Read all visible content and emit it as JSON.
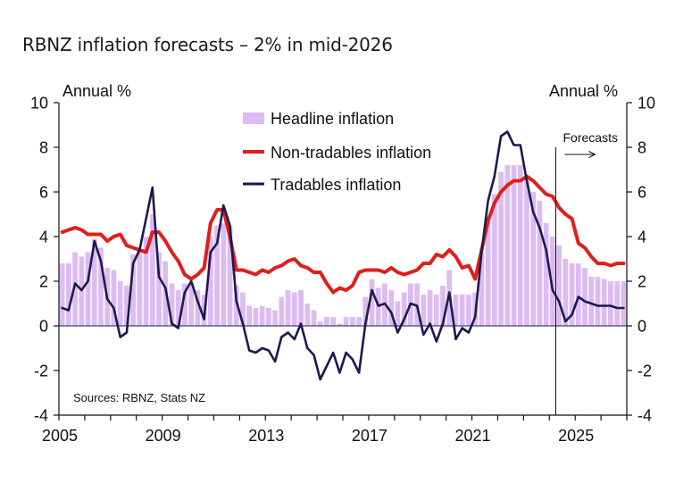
{
  "title": "RBNZ inflation forecasts – 2% in mid-2026",
  "chart_data": {
    "type": "bar+line",
    "title": "RBNZ inflation forecasts – 2% in mid-2026",
    "frequency": "quarterly",
    "x_start": "2005 Q1",
    "x_end": "2026 Q4",
    "x_range": [
      2005,
      2027
    ],
    "x_ticks": [
      2005,
      2009,
      2013,
      2017,
      2021,
      2025
    ],
    "x_tick_labels": [
      "2005",
      "2009",
      "2013",
      "2017",
      "2021",
      "2025"
    ],
    "ylim": [
      -4,
      10
    ],
    "y_ticks": [
      -4,
      -2,
      0,
      2,
      4,
      6,
      8,
      10
    ],
    "y_tick_labels": [
      "-4",
      "-2",
      "0",
      "2",
      "4",
      "6",
      "8",
      "10"
    ],
    "ylabel_left": "Annual %",
    "ylabel_right": "Annual %",
    "grid": false,
    "legend_position": "top-center",
    "forecast_start": 2024.25,
    "forecast_label": "Forecasts",
    "source_note": "Sources: RBNZ, Stats NZ",
    "series": [
      {
        "name": "Headline inflation",
        "kind": "bar",
        "color": "#DDBCF2",
        "values": [
          2.8,
          2.8,
          3.3,
          3.1,
          3.3,
          3.9,
          3.5,
          2.6,
          2.5,
          2.0,
          1.8,
          3.2,
          3.4,
          4.0,
          5.0,
          3.3,
          2.9,
          1.9,
          1.6,
          1.9,
          1.9,
          1.6,
          1.4,
          4.0,
          4.5,
          4.6,
          4.5,
          1.8,
          1.5,
          0.9,
          0.8,
          0.9,
          0.8,
          0.7,
          1.3,
          1.6,
          1.5,
          1.6,
          1.0,
          0.7,
          0.2,
          0.4,
          0.4,
          0.1,
          0.4,
          0.4,
          0.4,
          1.3,
          2.1,
          1.7,
          1.9,
          1.6,
          1.1,
          1.5,
          1.9,
          1.9,
          1.4,
          1.6,
          1.4,
          1.8,
          2.5,
          1.4,
          1.4,
          1.4,
          1.5,
          3.3,
          4.9,
          5.9,
          6.9,
          7.2,
          7.2,
          7.2,
          6.7,
          6.0,
          5.6,
          4.6,
          4.0,
          3.6,
          3.0,
          2.8,
          2.8,
          2.6,
          2.2,
          2.2,
          2.1,
          2.0,
          2.0,
          2.0
        ]
      },
      {
        "name": "Non-tradables inflation",
        "kind": "line",
        "color": "#E01E1A",
        "values": [
          4.2,
          4.3,
          4.4,
          4.3,
          4.1,
          4.1,
          4.1,
          3.8,
          4.0,
          4.1,
          3.6,
          3.5,
          3.4,
          3.3,
          4.2,
          4.2,
          3.8,
          3.3,
          2.9,
          2.3,
          2.1,
          2.3,
          2.6,
          4.6,
          5.2,
          5.2,
          4.0,
          2.5,
          2.5,
          2.4,
          2.3,
          2.5,
          2.4,
          2.6,
          2.7,
          2.9,
          3.0,
          2.7,
          2.6,
          2.4,
          2.4,
          1.9,
          1.5,
          1.7,
          1.6,
          1.8,
          2.4,
          2.5,
          2.5,
          2.5,
          2.4,
          2.6,
          2.4,
          2.3,
          2.4,
          2.5,
          2.8,
          2.8,
          3.2,
          3.1,
          3.4,
          3.1,
          2.6,
          2.7,
          2.1,
          3.4,
          4.7,
          5.5,
          6.0,
          6.3,
          6.5,
          6.5,
          6.7,
          6.5,
          6.2,
          5.9,
          5.8,
          5.3,
          5.0,
          4.8,
          3.7,
          3.5,
          3.1,
          2.8,
          2.8,
          2.7,
          2.8,
          2.8
        ]
      },
      {
        "name": "Tradables inflation",
        "kind": "line",
        "color": "#1C1A4E",
        "values": [
          0.8,
          0.7,
          1.9,
          1.6,
          2.0,
          3.8,
          2.9,
          1.2,
          0.8,
          -0.5,
          -0.3,
          2.8,
          3.4,
          4.8,
          6.2,
          2.2,
          1.7,
          0.1,
          -0.1,
          1.5,
          2.0,
          1.1,
          0.3,
          3.3,
          3.7,
          5.4,
          4.5,
          1.1,
          0.1,
          -1.1,
          -1.2,
          -1.0,
          -1.1,
          -1.6,
          -0.5,
          -0.3,
          -0.6,
          0.1,
          -1.0,
          -1.3,
          -2.4,
          -1.8,
          -1.2,
          -2.1,
          -1.2,
          -1.5,
          -2.1,
          0.1,
          1.6,
          0.9,
          1.0,
          0.6,
          -0.3,
          0.3,
          1.0,
          0.9,
          -0.4,
          0.1,
          -0.7,
          0.1,
          1.5,
          -0.6,
          -0.1,
          -0.3,
          0.4,
          3.3,
          5.6,
          6.7,
          8.5,
          8.7,
          8.1,
          8.1,
          6.5,
          5.1,
          4.4,
          3.4,
          1.6,
          1.1,
          0.2,
          0.5,
          1.3,
          1.1,
          1.0,
          0.9,
          0.9,
          0.9,
          0.8,
          0.8
        ]
      }
    ]
  },
  "legend": [
    {
      "label": "Headline inflation"
    },
    {
      "label": "Non-tradables inflation"
    },
    {
      "label": "Tradables inflation"
    }
  ]
}
